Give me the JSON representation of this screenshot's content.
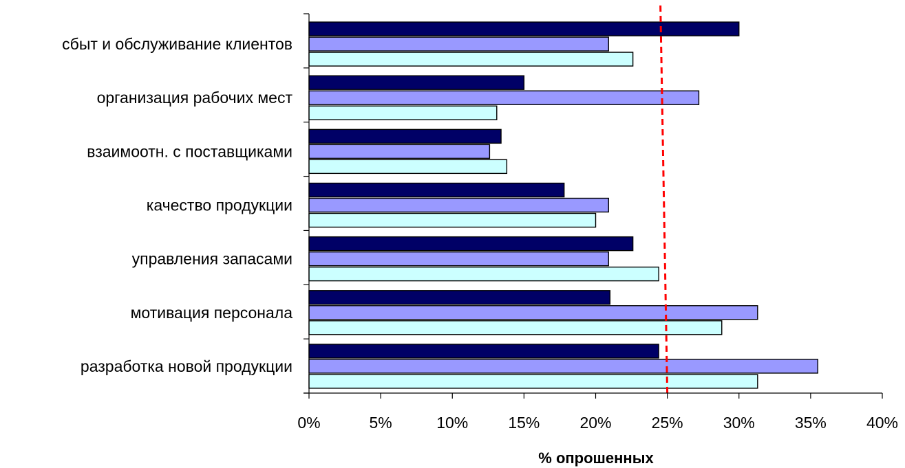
{
  "chart_data": {
    "type": "bar",
    "orientation": "horizontal",
    "title": "",
    "xlabel": "% опрошенных",
    "ylabel": "",
    "xlim": [
      0,
      40
    ],
    "x_ticks": [
      "0%",
      "5%",
      "10%",
      "15%",
      "20%",
      "25%",
      "30%",
      "35%",
      "40%"
    ],
    "grid": false,
    "legend": "none",
    "categories": [
      "сбыт и обслуживание клиентов",
      "организация рабочих мест",
      "взаимоотн. с поставщиками",
      "качество  продукции",
      "управления запасами ",
      "мотивация персонала",
      "разработка новой продукции"
    ],
    "series": [
      {
        "color": "#000066",
        "values": [
          30,
          15,
          13.4,
          17.8,
          22.6,
          21,
          24.4
        ]
      },
      {
        "color": "#9999ff",
        "values": [
          20.9,
          27.2,
          12.6,
          20.9,
          20.9,
          31.3,
          35.5
        ]
      },
      {
        "color": "#ccffff",
        "values": [
          22.6,
          13.1,
          13.8,
          20,
          24.4,
          28.8,
          31.3
        ]
      }
    ],
    "reference_line": {
      "value": 25,
      "color": "#ff0000",
      "style": "dashed"
    }
  }
}
